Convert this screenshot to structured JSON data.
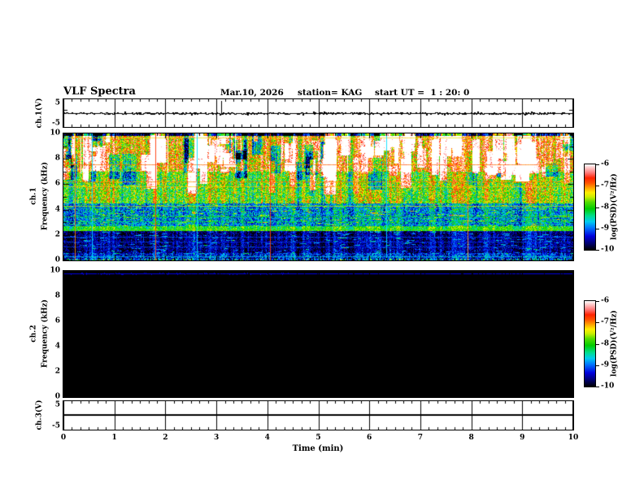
{
  "header": {
    "title": "VLF Spectra",
    "date": "Mar.10, 2026",
    "station": "station= KAG",
    "start_ut": "start UT =  1 : 20: 0"
  },
  "time_axis": {
    "label": "Time (min)",
    "ticks": [
      "0",
      "1",
      "2",
      "3",
      "4",
      "5",
      "6",
      "7",
      "8",
      "9",
      "10"
    ],
    "range_min": [
      0,
      10
    ],
    "minor_divisions_per_major": 6
  },
  "panels": {
    "ch1_waveform": {
      "ylabel": "ch.1(V)",
      "ytick_top": "5",
      "ytick_bottom": "-5",
      "ylim": [
        -5,
        5
      ]
    },
    "ch1_spectrogram": {
      "ylabel_line1": "ch.1",
      "ylabel_line2": "Frequency (kHz)",
      "yticks": [
        "10",
        "8",
        "6",
        "4",
        "2",
        "0"
      ],
      "ylim_khz": [
        0,
        10
      ]
    },
    "ch2_spectrogram": {
      "ylabel_line1": "ch.2",
      "ylabel_line2": "Frequency (kHz)",
      "yticks": [
        "10",
        "8",
        "6",
        "4",
        "2",
        "0"
      ],
      "ylim_khz": [
        0,
        10
      ]
    },
    "ch3_waveform": {
      "ylabel": "ch.3(V)",
      "ytick_top": "5",
      "ytick_bottom": "-5",
      "ylim": [
        -5,
        5
      ]
    }
  },
  "colorbars": [
    {
      "label": "log(PSD)(V²/Hz)",
      "ticks": [
        "-6",
        "-7",
        "-8",
        "-9",
        "-10"
      ],
      "range": [
        -10,
        -6
      ]
    },
    {
      "label": "log(PSD)(V²/Hz)",
      "ticks": [
        "-6",
        "-7",
        "-8",
        "-9",
        "-10"
      ],
      "range": [
        -10,
        -6
      ]
    }
  ],
  "chart_data": [
    {
      "id": "ch1-waveform",
      "type": "line",
      "ylabel": "ch.1(V)",
      "ylim": [
        -5,
        5
      ],
      "xlim_min": [
        0,
        10
      ],
      "baseline_v": 0,
      "noise_amplitude_v": 0.3,
      "spikes": [
        {
          "t_min": 3.1,
          "amplitude_v": 3.8
        }
      ],
      "description": "Near-flat noisy trace at 0 V with one positive spike near 3.1 min"
    },
    {
      "id": "ch1-spectrogram",
      "type": "heatmap",
      "xlabel": "Time (min)",
      "ylabel": "Frequency (kHz)",
      "xlim_min": [
        0,
        10
      ],
      "ylim_khz": [
        0,
        10
      ],
      "z_label": "log(PSD)(V²/Hz)",
      "z_range": [
        -10,
        -6
      ],
      "bands": [
        {
          "f_khz": [
            9.8,
            10.0
          ],
          "psd": -9.6,
          "jitter": 0.5
        },
        {
          "f_khz": [
            7.0,
            9.8
          ],
          "psd": -7.0,
          "jitter": 0.9
        },
        {
          "f_khz": [
            4.5,
            7.0
          ],
          "psd": -7.75,
          "jitter": 0.8
        },
        {
          "f_khz": [
            2.7,
            4.5
          ],
          "psd": -8.8,
          "jitter": 0.7
        },
        {
          "f_khz": [
            2.3,
            2.7
          ],
          "psd": -8.0,
          "jitter": 0.5
        },
        {
          "f_khz": [
            0.6,
            2.3
          ],
          "psd": -9.6,
          "jitter": 0.45
        },
        {
          "f_khz": [
            0.0,
            0.6
          ],
          "psd": -9.25,
          "jitter": 0.6
        }
      ],
      "h_lines": [
        {
          "f_khz": 9.65,
          "psd": -7.3
        },
        {
          "f_khz": 7.55,
          "psd": -6.9
        },
        {
          "f_khz": 6.2,
          "psd": -7.0
        },
        {
          "f_khz": 5.85,
          "psd": -7.2
        },
        {
          "f_khz": 4.3,
          "psd": -7.5
        },
        {
          "f_khz": 3.45,
          "psd": -8.1
        },
        {
          "f_khz": 3.05,
          "psd": -8.25
        },
        {
          "f_khz": 2.45,
          "psd": -7.8
        },
        {
          "f_khz": 1.85,
          "psd": -9.1
        },
        {
          "f_khz": 1.5,
          "psd": -9.2
        },
        {
          "f_khz": 1.1,
          "psd": -9.15
        },
        {
          "f_khz": 0.35,
          "psd": -8.6
        }
      ],
      "v_lines": [
        {
          "t_min": 0.22,
          "color": "#ff8800"
        },
        {
          "t_min": 0.56,
          "color": "#00ddff"
        },
        {
          "t_min": 1.8,
          "color": "#ff3300"
        },
        {
          "t_min": 2.62,
          "color": "#00ddff"
        },
        {
          "t_min": 4.05,
          "color": "#ff4400"
        },
        {
          "t_min": 6.33,
          "color": "#00ddff"
        },
        {
          "t_min": 7.93,
          "color": "#ff8800"
        }
      ],
      "colormap_stops": [
        [
          0.0,
          "#000000"
        ],
        [
          0.07,
          "#000066"
        ],
        [
          0.16,
          "#0000dd"
        ],
        [
          0.26,
          "#0077ff"
        ],
        [
          0.33,
          "#00ccee"
        ],
        [
          0.4,
          "#00dd88"
        ],
        [
          0.48,
          "#00cc00"
        ],
        [
          0.56,
          "#55dd00"
        ],
        [
          0.62,
          "#ccee00"
        ],
        [
          0.67,
          "#ffee00"
        ],
        [
          0.72,
          "#ffaa00"
        ],
        [
          0.78,
          "#ff5500"
        ],
        [
          0.84,
          "#ff2200"
        ],
        [
          0.9,
          "#ff7777"
        ],
        [
          0.95,
          "#ffbbbb"
        ],
        [
          1.0,
          "#ffffff"
        ]
      ],
      "description": "Dense noisy VLF spectrogram: intense red/white activity 7-10 kHz, green/yellow 4.5-7 kHz, blue speckle 2.7-4.5 kHz, green band near 2.4 kHz, dark blue/black below 2.3 kHz"
    },
    {
      "id": "ch2-spectrogram",
      "type": "heatmap",
      "xlabel": "Time (min)",
      "ylabel": "Frequency (kHz)",
      "xlim_min": [
        0,
        10
      ],
      "ylim_khz": [
        0,
        10
      ],
      "z_label": "log(PSD)(V²/Hz)",
      "z_range": [
        -10,
        -6
      ],
      "uniform_psd": -10,
      "h_lines": [
        {
          "f_khz": 9.8,
          "color": "#0000dd"
        }
      ],
      "description": "ch.2 spectrogram entirely at the noise floor (black) except a thin blue line near 9.8 kHz"
    },
    {
      "id": "ch3-waveform",
      "type": "line",
      "ylabel": "ch.3(V)",
      "ylim": [
        -5,
        5
      ],
      "xlim_min": [
        0,
        10
      ],
      "baseline_v": 0,
      "noise_amplitude_v": 0,
      "description": "Perfectly flat line at 0 V"
    }
  ]
}
